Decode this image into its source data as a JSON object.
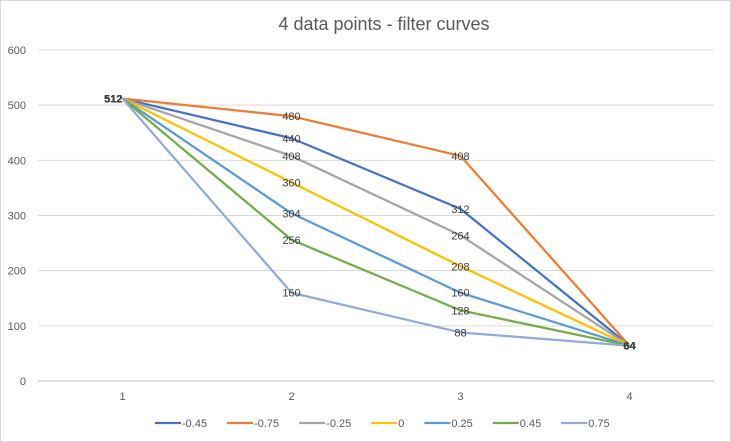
{
  "chart_data": {
    "type": "line",
    "title": "4 data points - filter curves",
    "xlabel": "",
    "ylabel": "",
    "x": [
      1,
      2,
      3,
      4
    ],
    "ylim": [
      0,
      600
    ],
    "yticks": [
      0,
      100,
      200,
      300,
      400,
      500,
      600
    ],
    "grid": true,
    "legend_position": "bottom",
    "series": [
      {
        "name": "-0.45",
        "color": "#4472c4",
        "values": [
          512,
          440,
          312,
          64
        ]
      },
      {
        "name": "-0.75",
        "color": "#ed7d31",
        "values": [
          512,
          480,
          408,
          64
        ]
      },
      {
        "name": "-0.25",
        "color": "#a5a5a5",
        "values": [
          512,
          408,
          264,
          64
        ]
      },
      {
        "name": "0",
        "color": "#ffc000",
        "values": [
          512,
          360,
          208,
          64
        ]
      },
      {
        "name": "0.25",
        "color": "#5b9bd5",
        "values": [
          512,
          304,
          160,
          64
        ]
      },
      {
        "name": "0.45",
        "color": "#70ad47",
        "values": [
          512,
          256,
          128,
          64
        ]
      },
      {
        "name": "0.75",
        "color": "#8faadc",
        "values": [
          512,
          160,
          88,
          64
        ]
      }
    ]
  }
}
